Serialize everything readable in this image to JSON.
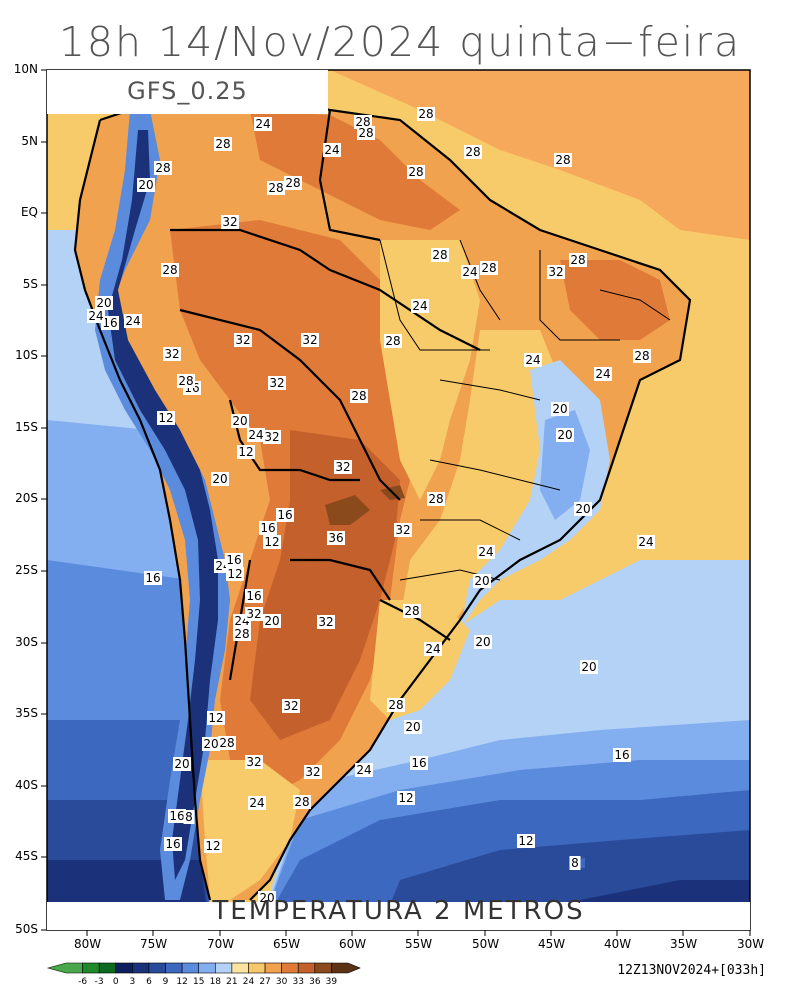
{
  "title": "18h 14/Nov/2024 quinta−feira",
  "model": "GFS_0.25",
  "subtitle": "TEMPERATURA 2 METROS",
  "run_info": "12Z13NOV2024+[033h]",
  "lat_labels": [
    "10N",
    "5N",
    "EQ",
    "5S",
    "10S",
    "15S",
    "20S",
    "25S",
    "30S",
    "35S",
    "40S",
    "45S",
    "50S"
  ],
  "lon_labels": [
    "80W",
    "75W",
    "70W",
    "65W",
    "60W",
    "55W",
    "50W",
    "45W",
    "40W",
    "35W",
    "30W"
  ],
  "legend": {
    "ticks": [
      "-6",
      "-3",
      "0",
      "3",
      "6",
      "9",
      "12",
      "15",
      "18",
      "21",
      "24",
      "27",
      "30",
      "33",
      "36",
      "39"
    ],
    "colors": [
      "#4aa84a",
      "#1e8a2a",
      "#0a6b1e",
      "#0d1f5c",
      "#1b327a",
      "#2a4b9a",
      "#3d68c0",
      "#5b8bdc",
      "#83aef0",
      "#b3d2f5",
      "#fbe3a0",
      "#f7c86a",
      "#f0a24e",
      "#e07a38",
      "#c4602c",
      "#8a4a1c",
      "#5a3214"
    ]
  },
  "contour_labels": [
    {
      "text": "28"
    },
    {
      "text": "24"
    },
    {
      "text": "28"
    },
    {
      "text": "28"
    },
    {
      "text": "28"
    },
    {
      "text": "24"
    },
    {
      "text": "28"
    },
    {
      "text": "28"
    },
    {
      "text": "28"
    },
    {
      "text": "28"
    },
    {
      "text": "28"
    },
    {
      "text": "20"
    },
    {
      "text": "28"
    },
    {
      "text": "32"
    },
    {
      "text": "28"
    },
    {
      "text": "28"
    },
    {
      "text": "24"
    },
    {
      "text": "32"
    },
    {
      "text": "28"
    },
    {
      "text": "28"
    },
    {
      "text": "20"
    },
    {
      "text": "24"
    },
    {
      "text": "16"
    },
    {
      "text": "24"
    },
    {
      "text": "24"
    },
    {
      "text": "32"
    },
    {
      "text": "32"
    },
    {
      "text": "28"
    },
    {
      "text": "32"
    },
    {
      "text": "24"
    },
    {
      "text": "28"
    },
    {
      "text": "16"
    },
    {
      "text": "32"
    },
    {
      "text": "28"
    },
    {
      "text": "24"
    },
    {
      "text": "20"
    },
    {
      "text": "12"
    },
    {
      "text": "20"
    },
    {
      "text": "24"
    },
    {
      "text": "32"
    },
    {
      "text": "28"
    },
    {
      "text": "20"
    },
    {
      "text": "12"
    },
    {
      "text": "32"
    },
    {
      "text": "20"
    },
    {
      "text": "28"
    },
    {
      "text": "20"
    },
    {
      "text": "16"
    },
    {
      "text": "16"
    },
    {
      "text": "12"
    },
    {
      "text": "32"
    },
    {
      "text": "36"
    },
    {
      "text": "24"
    },
    {
      "text": "24"
    },
    {
      "text": "16"
    },
    {
      "text": "24"
    },
    {
      "text": "12"
    },
    {
      "text": "20"
    },
    {
      "text": "16"
    },
    {
      "text": "16"
    },
    {
      "text": "28"
    },
    {
      "text": "24"
    },
    {
      "text": "20"
    },
    {
      "text": "32"
    },
    {
      "text": "28"
    },
    {
      "text": "32"
    },
    {
      "text": "24"
    },
    {
      "text": "20"
    },
    {
      "text": "20"
    },
    {
      "text": "32"
    },
    {
      "text": "28"
    },
    {
      "text": "20"
    },
    {
      "text": "12"
    },
    {
      "text": "20"
    },
    {
      "text": "28"
    },
    {
      "text": "16"
    },
    {
      "text": "32"
    },
    {
      "text": "20"
    },
    {
      "text": "32"
    },
    {
      "text": "24"
    },
    {
      "text": "16"
    },
    {
      "text": "24"
    },
    {
      "text": "28"
    },
    {
      "text": "12"
    },
    {
      "text": "16"
    },
    {
      "text": "8"
    },
    {
      "text": "12"
    },
    {
      "text": "16"
    },
    {
      "text": "12"
    },
    {
      "text": "8"
    },
    {
      "text": "20"
    }
  ]
}
